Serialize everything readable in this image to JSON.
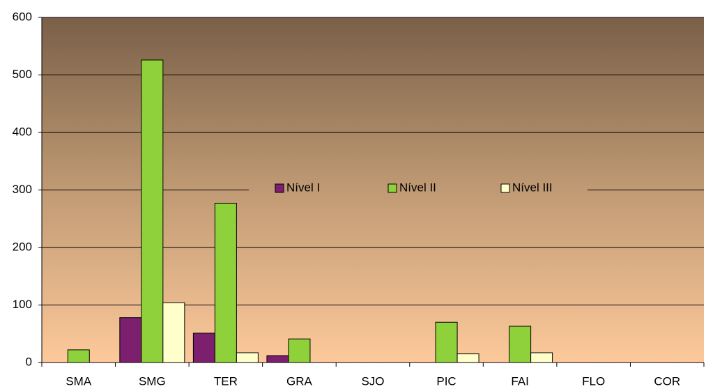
{
  "chart_data": {
    "type": "bar",
    "categories": [
      "SMA",
      "SMG",
      "TER",
      "GRA",
      "SJO",
      "PIC",
      "FAI",
      "FLO",
      "COR"
    ],
    "series": [
      {
        "name": "Nível I",
        "color": "#7b1f6e",
        "values": [
          0,
          78,
          51,
          12,
          0,
          0,
          0,
          0,
          0
        ]
      },
      {
        "name": "Nível II",
        "color": "#8fd13a",
        "values": [
          22,
          526,
          277,
          41,
          0,
          70,
          63,
          0,
          0
        ]
      },
      {
        "name": "Nível III",
        "color": "#ffffcc",
        "values": [
          0,
          104,
          17,
          0,
          0,
          15,
          17,
          0,
          0
        ]
      }
    ],
    "ylim": [
      0,
      600
    ],
    "yticks": [
      0,
      100,
      200,
      300,
      400,
      500,
      600
    ],
    "grid": true,
    "legend": "center"
  }
}
